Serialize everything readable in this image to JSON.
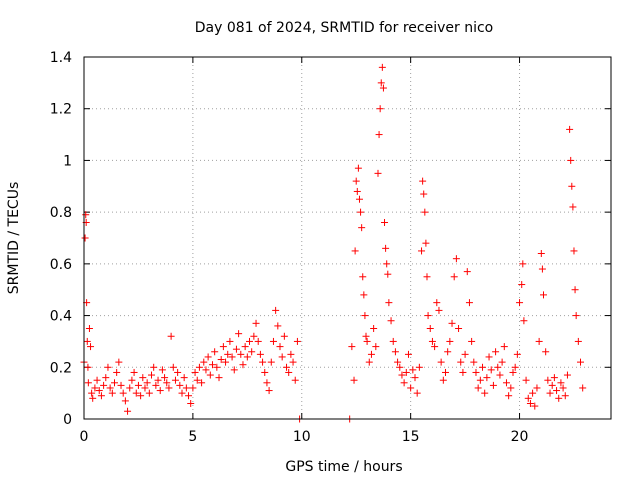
{
  "chart_data": {
    "type": "scatter",
    "title": "Day 081 of 2024, SRMTID for receiver nico",
    "xlabel": "GPS time / hours",
    "ylabel": "SRMTID / TECUs",
    "xlim": [
      0,
      24.2
    ],
    "ylim": [
      0,
      1.4
    ],
    "xticks": [
      0,
      5,
      10,
      15,
      20
    ],
    "xtick_labels": [
      "0",
      "5",
      "10",
      "15",
      "20"
    ],
    "yticks": [
      0,
      0.2,
      0.4,
      0.6,
      0.8,
      1,
      1.2,
      1.4
    ],
    "ytick_labels": [
      "0",
      "0.2",
      "0.4",
      "0.6",
      "0.8",
      "1",
      "1.2",
      "1.4"
    ],
    "grid": true,
    "marker": "+",
    "marker_color": "#ff0000",
    "series": [
      {
        "name": "SRMTID",
        "points": [
          [
            0.0,
            0.22
          ],
          [
            0.05,
            0.7
          ],
          [
            0.08,
            0.79
          ],
          [
            0.1,
            0.76
          ],
          [
            0.12,
            0.45
          ],
          [
            0.15,
            0.3
          ],
          [
            0.18,
            0.2
          ],
          [
            0.2,
            0.14
          ],
          [
            0.25,
            0.35
          ],
          [
            0.3,
            0.28
          ],
          [
            0.35,
            0.1
          ],
          [
            0.4,
            0.08
          ],
          [
            0.5,
            0.12
          ],
          [
            0.6,
            0.15
          ],
          [
            0.7,
            0.11
          ],
          [
            0.8,
            0.09
          ],
          [
            0.9,
            0.13
          ],
          [
            1.0,
            0.16
          ],
          [
            1.1,
            0.2
          ],
          [
            1.2,
            0.12
          ],
          [
            1.3,
            0.1
          ],
          [
            1.4,
            0.14
          ],
          [
            1.5,
            0.18
          ],
          [
            1.6,
            0.22
          ],
          [
            1.7,
            0.13
          ],
          [
            1.8,
            0.1
          ],
          [
            1.9,
            0.07
          ],
          [
            2.0,
            0.03
          ],
          [
            2.1,
            0.12
          ],
          [
            2.2,
            0.15
          ],
          [
            2.3,
            0.18
          ],
          [
            2.4,
            0.1
          ],
          [
            2.5,
            0.13
          ],
          [
            2.6,
            0.09
          ],
          [
            2.7,
            0.16
          ],
          [
            2.8,
            0.12
          ],
          [
            2.9,
            0.14
          ],
          [
            3.0,
            0.1
          ],
          [
            3.1,
            0.17
          ],
          [
            3.2,
            0.2
          ],
          [
            3.3,
            0.13
          ],
          [
            3.4,
            0.15
          ],
          [
            3.5,
            0.11
          ],
          [
            3.6,
            0.19
          ],
          [
            3.7,
            0.16
          ],
          [
            3.8,
            0.14
          ],
          [
            3.9,
            0.12
          ],
          [
            4.0,
            0.32
          ],
          [
            4.1,
            0.2
          ],
          [
            4.2,
            0.15
          ],
          [
            4.3,
            0.18
          ],
          [
            4.4,
            0.13
          ],
          [
            4.5,
            0.1
          ],
          [
            4.6,
            0.16
          ],
          [
            4.7,
            0.12
          ],
          [
            4.8,
            0.09
          ],
          [
            4.9,
            0.06
          ],
          [
            5.0,
            0.12
          ],
          [
            5.1,
            0.18
          ],
          [
            5.2,
            0.15
          ],
          [
            5.3,
            0.2
          ],
          [
            5.4,
            0.14
          ],
          [
            5.5,
            0.22
          ],
          [
            5.6,
            0.19
          ],
          [
            5.7,
            0.24
          ],
          [
            5.8,
            0.17
          ],
          [
            5.9,
            0.21
          ],
          [
            6.0,
            0.26
          ],
          [
            6.1,
            0.2
          ],
          [
            6.2,
            0.16
          ],
          [
            6.3,
            0.23
          ],
          [
            6.4,
            0.28
          ],
          [
            6.5,
            0.22
          ],
          [
            6.6,
            0.25
          ],
          [
            6.7,
            0.3
          ],
          [
            6.8,
            0.24
          ],
          [
            6.9,
            0.19
          ],
          [
            7.0,
            0.27
          ],
          [
            7.1,
            0.33
          ],
          [
            7.2,
            0.25
          ],
          [
            7.3,
            0.21
          ],
          [
            7.4,
            0.28
          ],
          [
            7.5,
            0.24
          ],
          [
            7.6,
            0.3
          ],
          [
            7.7,
            0.26
          ],
          [
            7.8,
            0.32
          ],
          [
            7.9,
            0.37
          ],
          [
            8.0,
            0.3
          ],
          [
            8.1,
            0.25
          ],
          [
            8.2,
            0.22
          ],
          [
            8.3,
            0.18
          ],
          [
            8.4,
            0.14
          ],
          [
            8.5,
            0.11
          ],
          [
            8.6,
            0.22
          ],
          [
            8.7,
            0.3
          ],
          [
            8.8,
            0.42
          ],
          [
            8.9,
            0.36
          ],
          [
            9.0,
            0.28
          ],
          [
            9.1,
            0.24
          ],
          [
            9.2,
            0.32
          ],
          [
            9.3,
            0.2
          ],
          [
            9.4,
            0.18
          ],
          [
            9.5,
            0.25
          ],
          [
            9.6,
            0.22
          ],
          [
            9.7,
            0.15
          ],
          [
            9.8,
            0.3
          ],
          [
            9.9,
            0.0
          ],
          [
            12.2,
            0.0
          ],
          [
            12.3,
            0.28
          ],
          [
            12.4,
            0.15
          ],
          [
            12.45,
            0.65
          ],
          [
            12.5,
            0.92
          ],
          [
            12.55,
            0.88
          ],
          [
            12.6,
            0.97
          ],
          [
            12.65,
            0.85
          ],
          [
            12.7,
            0.8
          ],
          [
            12.75,
            0.74
          ],
          [
            12.8,
            0.55
          ],
          [
            12.85,
            0.48
          ],
          [
            12.9,
            0.4
          ],
          [
            12.95,
            0.32
          ],
          [
            13.0,
            0.3
          ],
          [
            13.1,
            0.22
          ],
          [
            13.2,
            0.25
          ],
          [
            13.3,
            0.35
          ],
          [
            13.4,
            0.28
          ],
          [
            13.5,
            0.95
          ],
          [
            13.55,
            1.1
          ],
          [
            13.6,
            1.2
          ],
          [
            13.65,
            1.3
          ],
          [
            13.7,
            1.36
          ],
          [
            13.75,
            1.28
          ],
          [
            13.8,
            0.76
          ],
          [
            13.85,
            0.66
          ],
          [
            13.9,
            0.6
          ],
          [
            13.95,
            0.56
          ],
          [
            14.0,
            0.45
          ],
          [
            14.1,
            0.38
          ],
          [
            14.2,
            0.3
          ],
          [
            14.3,
            0.26
          ],
          [
            14.4,
            0.22
          ],
          [
            14.5,
            0.2
          ],
          [
            14.6,
            0.17
          ],
          [
            14.7,
            0.14
          ],
          [
            14.8,
            0.18
          ],
          [
            14.9,
            0.25
          ],
          [
            15.0,
            0.12
          ],
          [
            15.1,
            0.19
          ],
          [
            15.2,
            0.16
          ],
          [
            15.3,
            0.1
          ],
          [
            15.4,
            0.2
          ],
          [
            15.5,
            0.65
          ],
          [
            15.55,
            0.92
          ],
          [
            15.6,
            0.87
          ],
          [
            15.65,
            0.8
          ],
          [
            15.7,
            0.68
          ],
          [
            15.75,
            0.55
          ],
          [
            15.8,
            0.4
          ],
          [
            15.9,
            0.35
          ],
          [
            16.0,
            0.3
          ],
          [
            16.1,
            0.28
          ],
          [
            16.2,
            0.45
          ],
          [
            16.3,
            0.42
          ],
          [
            16.4,
            0.22
          ],
          [
            16.5,
            0.15
          ],
          [
            16.6,
            0.18
          ],
          [
            16.7,
            0.26
          ],
          [
            16.8,
            0.3
          ],
          [
            16.9,
            0.37
          ],
          [
            17.0,
            0.55
          ],
          [
            17.1,
            0.62
          ],
          [
            17.2,
            0.35
          ],
          [
            17.3,
            0.22
          ],
          [
            17.4,
            0.18
          ],
          [
            17.5,
            0.25
          ],
          [
            17.6,
            0.57
          ],
          [
            17.7,
            0.45
          ],
          [
            17.8,
            0.3
          ],
          [
            17.9,
            0.22
          ],
          [
            18.0,
            0.18
          ],
          [
            18.1,
            0.12
          ],
          [
            18.2,
            0.15
          ],
          [
            18.3,
            0.2
          ],
          [
            18.4,
            0.1
          ],
          [
            18.5,
            0.16
          ],
          [
            18.6,
            0.24
          ],
          [
            18.7,
            0.19
          ],
          [
            18.8,
            0.13
          ],
          [
            18.9,
            0.26
          ],
          [
            19.0,
            0.2
          ],
          [
            19.1,
            0.17
          ],
          [
            19.2,
            0.22
          ],
          [
            19.3,
            0.28
          ],
          [
            19.4,
            0.14
          ],
          [
            19.5,
            0.09
          ],
          [
            19.6,
            0.12
          ],
          [
            19.7,
            0.18
          ],
          [
            19.8,
            0.2
          ],
          [
            19.9,
            0.25
          ],
          [
            20.0,
            0.45
          ],
          [
            20.1,
            0.52
          ],
          [
            20.15,
            0.6
          ],
          [
            20.2,
            0.38
          ],
          [
            20.3,
            0.15
          ],
          [
            20.4,
            0.08
          ],
          [
            20.5,
            0.06
          ],
          [
            20.6,
            0.1
          ],
          [
            20.7,
            0.05
          ],
          [
            20.8,
            0.12
          ],
          [
            20.9,
            0.3
          ],
          [
            21.0,
            0.64
          ],
          [
            21.05,
            0.58
          ],
          [
            21.1,
            0.48
          ],
          [
            21.2,
            0.26
          ],
          [
            21.3,
            0.15
          ],
          [
            21.4,
            0.1
          ],
          [
            21.5,
            0.13
          ],
          [
            21.6,
            0.16
          ],
          [
            21.7,
            0.11
          ],
          [
            21.8,
            0.08
          ],
          [
            21.9,
            0.14
          ],
          [
            22.0,
            0.12
          ],
          [
            22.1,
            0.09
          ],
          [
            22.2,
            0.17
          ],
          [
            22.3,
            1.12
          ],
          [
            22.35,
            1.0
          ],
          [
            22.4,
            0.9
          ],
          [
            22.45,
            0.82
          ],
          [
            22.5,
            0.65
          ],
          [
            22.55,
            0.5
          ],
          [
            22.6,
            0.4
          ],
          [
            22.7,
            0.3
          ],
          [
            22.8,
            0.22
          ],
          [
            22.9,
            0.12
          ]
        ]
      }
    ]
  }
}
